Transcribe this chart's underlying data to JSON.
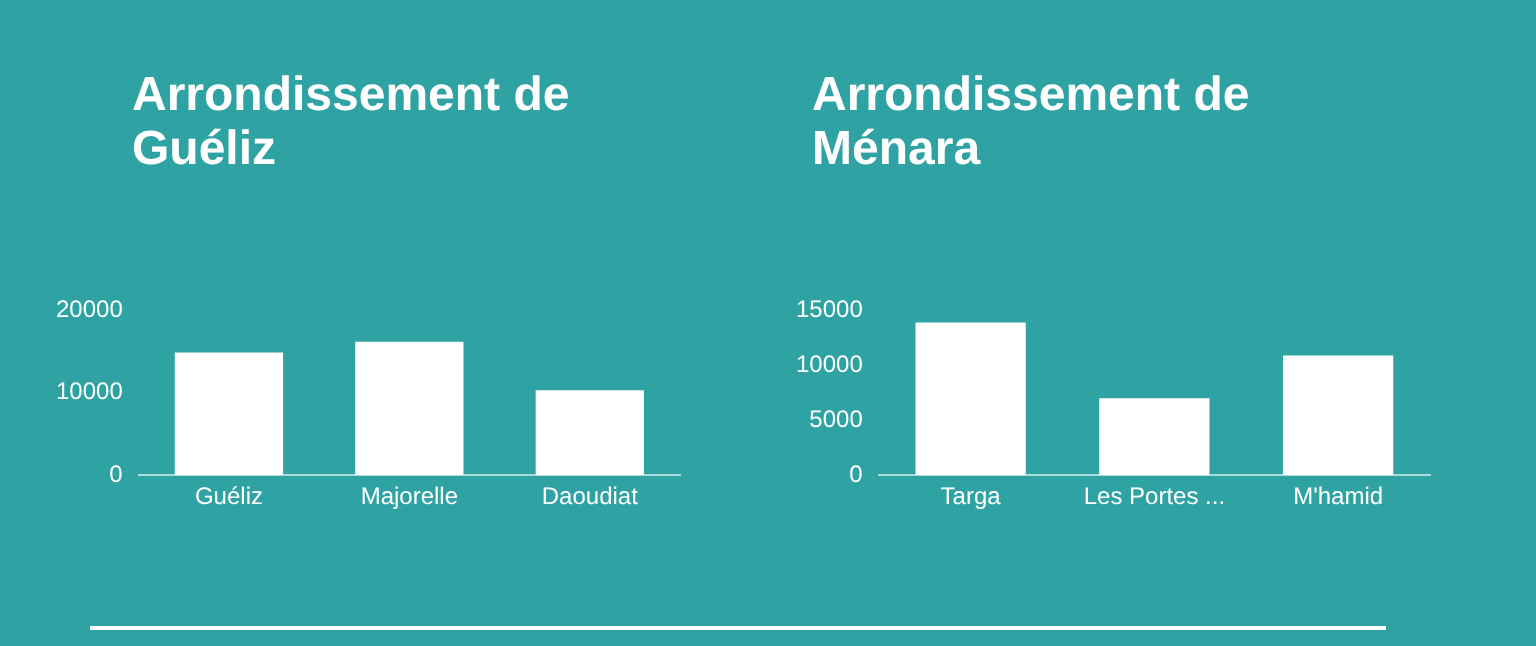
{
  "chart_data": [
    {
      "type": "bar",
      "title": "Arrondissement de Guéliz",
      "categories": [
        "Guéliz",
        "Majorelle",
        "Daoudiat"
      ],
      "values": [
        14900,
        16200,
        10300
      ],
      "color": "#ffffff",
      "ylim": [
        0,
        20000
      ],
      "yticks": [
        0,
        10000,
        20000
      ]
    },
    {
      "type": "bar",
      "title": "Arrondissement de Ménara",
      "categories": [
        "Targa",
        "Les Portes ...",
        "M'hamid"
      ],
      "values": [
        13900,
        7000,
        10900
      ],
      "color": "#ffffff",
      "ylim": [
        0,
        15000
      ],
      "yticks": [
        0,
        5000,
        10000,
        15000
      ]
    }
  ]
}
